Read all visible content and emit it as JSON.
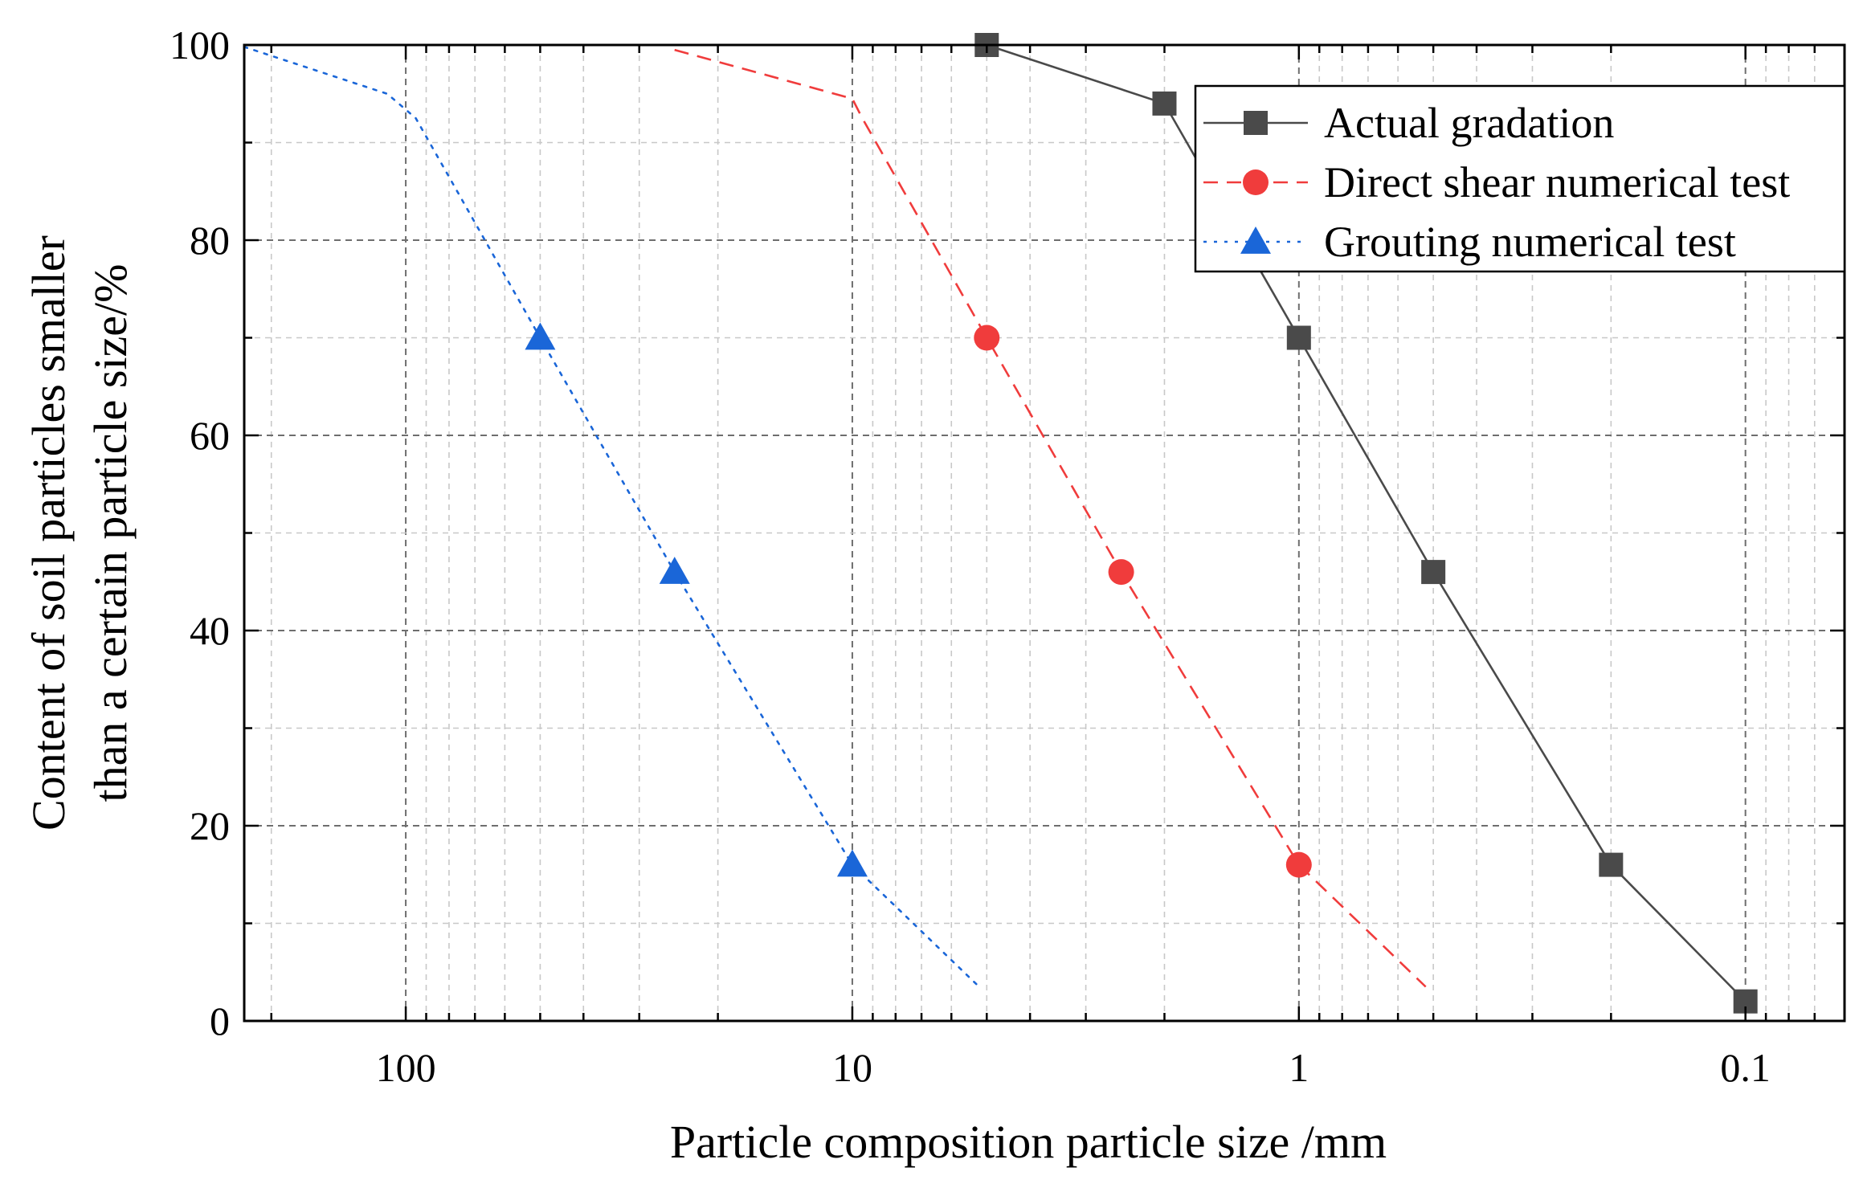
{
  "chart_data": {
    "type": "line",
    "title": "",
    "xlabel": "Particle composition particle size /mm",
    "ylabel_lines": [
      "Content of soil particles smaller",
      "than a certain particle size/%"
    ],
    "x_scale": "log",
    "x_reversed": true,
    "xlim": [
      230,
      0.06
    ],
    "ylim": [
      0,
      100
    ],
    "x_ticks": [
      100,
      10,
      1,
      0.1
    ],
    "x_tick_labels": [
      "100",
      "10",
      "1",
      "0.1"
    ],
    "y_ticks": [
      0,
      20,
      40,
      60,
      80,
      100
    ],
    "y_tick_labels": [
      "0",
      "20",
      "40",
      "60",
      "80",
      "100"
    ],
    "grid": true,
    "legend_position": "top-right",
    "series": [
      {
        "name": "Actual gradation",
        "color": "#4a4a4a",
        "line_style": "solid",
        "marker": "square",
        "x": [
          5,
          2,
          1,
          0.5,
          0.2,
          0.1
        ],
        "y": [
          100,
          94,
          70,
          46,
          16,
          2
        ]
      },
      {
        "name": "Direct shear numerical test",
        "color": "#f03c3c",
        "line_style": "dashed",
        "marker": "circle",
        "marker_x": [
          5,
          2.5,
          1
        ],
        "marker_y": [
          70,
          46,
          16
        ],
        "line_x": [
          25,
          10,
          9.5,
          5,
          2.5,
          1,
          0.52
        ],
        "line_y": [
          99.5,
          94.5,
          92.5,
          70,
          46,
          16,
          3.5
        ],
        "x": [
          5,
          2.5,
          1
        ],
        "y": [
          70,
          46,
          16
        ]
      },
      {
        "name": "Grouting numerical test",
        "color": "#1a66d8",
        "line_style": "dotted",
        "marker": "triangle",
        "marker_x": [
          50,
          25,
          10
        ],
        "marker_y": [
          70,
          46,
          16
        ],
        "line_x": [
          230,
          110,
          95,
          50,
          25,
          10,
          5.2
        ],
        "line_y": [
          99.8,
          95,
          92.5,
          70,
          46,
          16,
          3.5
        ],
        "x": [
          50,
          25,
          10
        ],
        "y": [
          70,
          46,
          16
        ]
      }
    ]
  }
}
